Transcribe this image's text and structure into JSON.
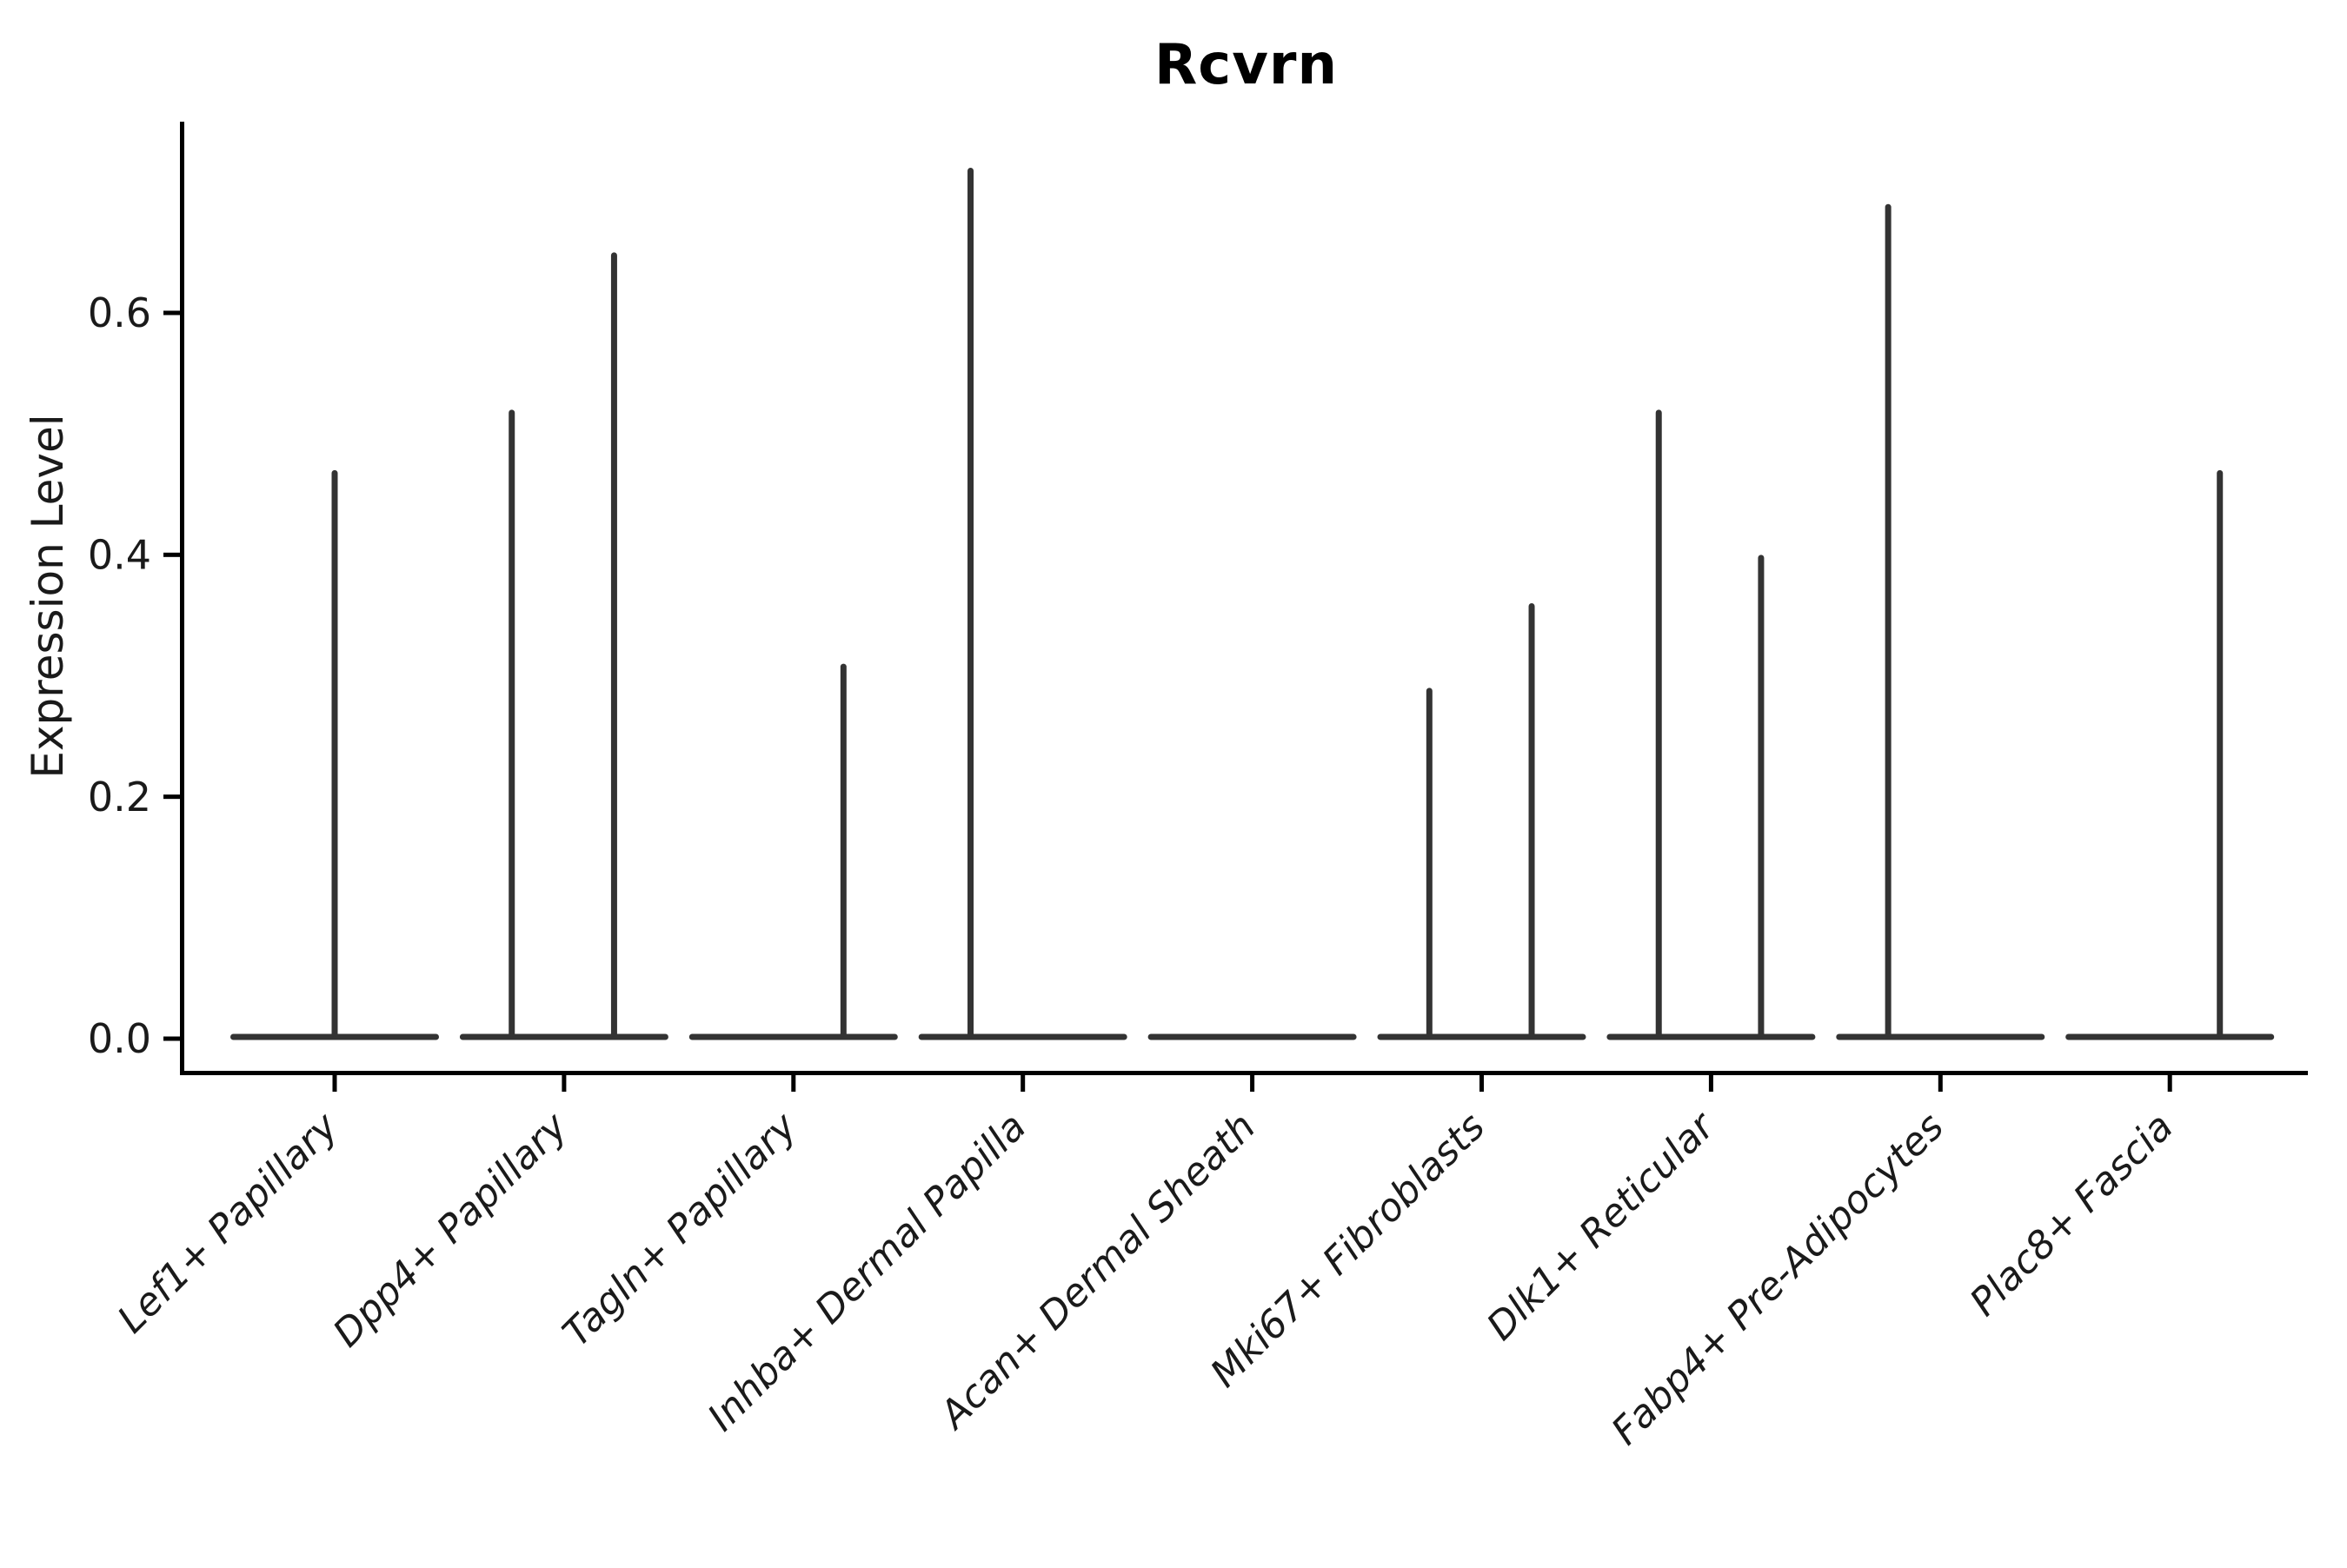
{
  "chart_data": {
    "type": "violin",
    "title": "Rcvrn",
    "xlabel": "",
    "ylabel": "Expression Level",
    "ylim": [
      -0.03,
      0.76
    ],
    "yticks": [
      0.0,
      0.2,
      0.4,
      0.6
    ],
    "grid": false,
    "legend": "none",
    "violin_color": "#333333",
    "axis_color": "#000000",
    "baseline_value": 0.0,
    "categories": [
      "Lef1+ Papillary",
      "Dpp4+ Papillary",
      "Tagln+ Papillary",
      "Inhba+ Dermal Papilla",
      "Acan+ Dermal Sheath",
      "Mki67+ Fibroblasts",
      "Dlk1+ Reticular",
      "Fabp4+ Pre-Adipocytes",
      "Plac8+ Fascia"
    ],
    "series": [
      {
        "category": "Lef1+ Papillary",
        "spikes": [
          {
            "position": "center",
            "max": 0.47
          }
        ]
      },
      {
        "category": "Dpp4+ Papillary",
        "spikes": [
          {
            "position": "left",
            "max": 0.52
          },
          {
            "position": "right",
            "max": 0.65
          }
        ]
      },
      {
        "category": "Tagln+ Papillary",
        "spikes": [
          {
            "position": "right",
            "max": 0.31
          }
        ]
      },
      {
        "category": "Inhba+ Dermal Papilla",
        "spikes": [
          {
            "position": "left",
            "max": 0.72
          }
        ]
      },
      {
        "category": "Acan+ Dermal Sheath",
        "spikes": []
      },
      {
        "category": "Mki67+ Fibroblasts",
        "spikes": [
          {
            "position": "left",
            "max": 0.29
          },
          {
            "position": "right",
            "max": 0.36
          }
        ]
      },
      {
        "category": "Dlk1+ Reticular",
        "spikes": [
          {
            "position": "left",
            "max": 0.52
          },
          {
            "position": "right",
            "max": 0.4
          }
        ]
      },
      {
        "category": "Fabp4+ Pre-Adipocytes",
        "spikes": [
          {
            "position": "left",
            "max": 0.69
          }
        ]
      },
      {
        "category": "Plac8+ Fascia",
        "spikes": [
          {
            "position": "right",
            "max": 0.47
          }
        ]
      }
    ]
  }
}
